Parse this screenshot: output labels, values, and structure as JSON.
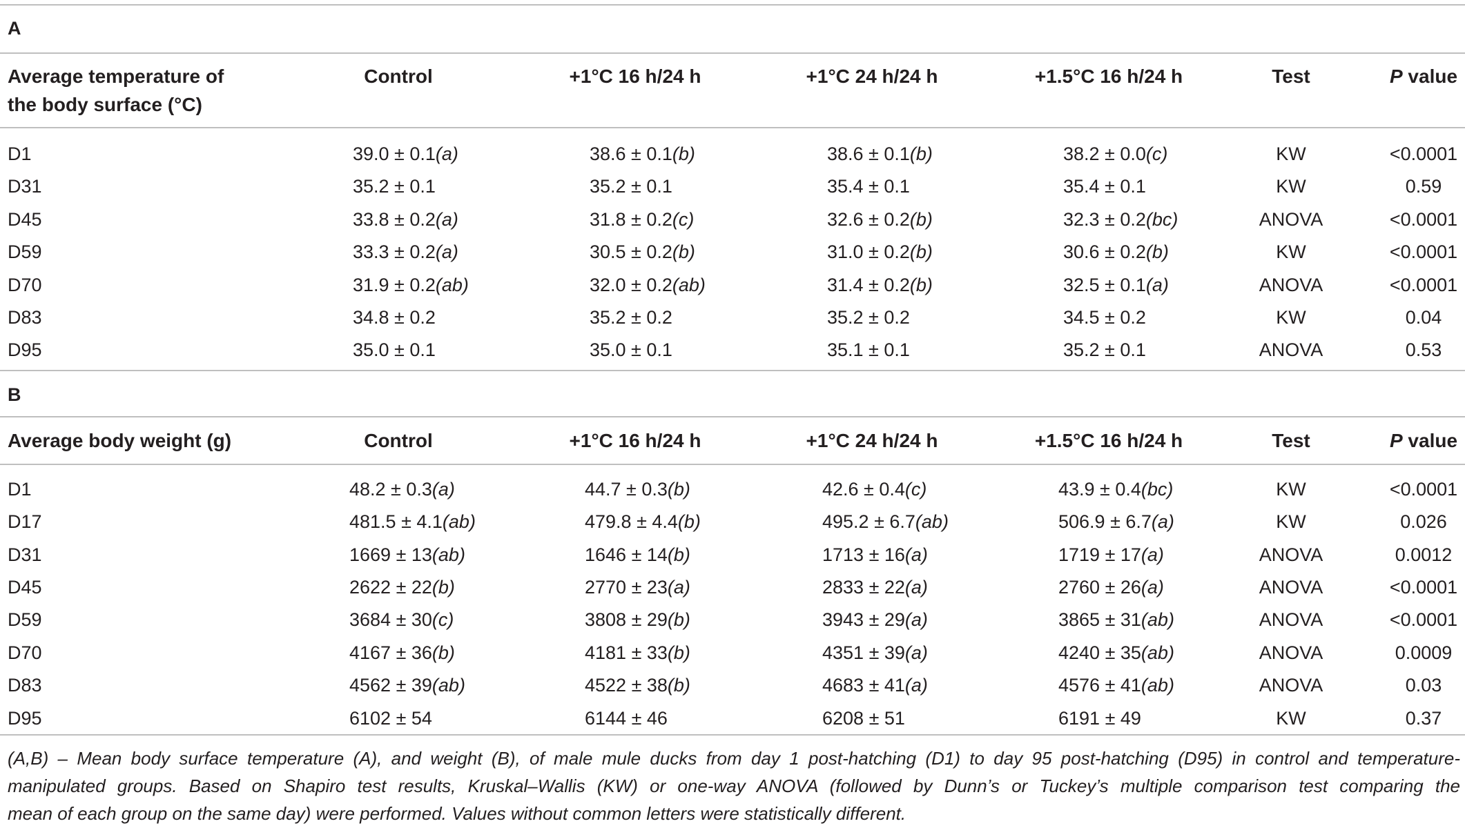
{
  "tables": [
    {
      "panel": "A",
      "header": {
        "label_lines": [
          "Average temperature of",
          "the body surface (°C)"
        ],
        "groups": [
          "Control",
          "+1°C 16 h/24 h",
          "+1°C 24 h/24 h",
          "+1.5°C 16 h/24 h"
        ],
        "test": "Test",
        "p": "P value"
      },
      "rows": [
        {
          "day": "D1",
          "cells": [
            {
              "mean": "39.0 ± 0.1",
              "letters": "(a)"
            },
            {
              "mean": "38.6 ± 0.1",
              "letters": "(b)"
            },
            {
              "mean": "38.6 ± 0.1",
              "letters": "(b)"
            },
            {
              "mean": "38.2 ± 0.0",
              "letters": "(c)"
            }
          ],
          "test": "KW",
          "p": "<0.0001"
        },
        {
          "day": "D31",
          "cells": [
            {
              "mean": "35.2 ± 0.1"
            },
            {
              "mean": "35.2 ± 0.1"
            },
            {
              "mean": "35.4 ± 0.1"
            },
            {
              "mean": "35.4 ± 0.1"
            }
          ],
          "test": "KW",
          "p": "0.59"
        },
        {
          "day": "D45",
          "cells": [
            {
              "mean": "33.8 ± 0.2",
              "letters": "(a)"
            },
            {
              "mean": "31.8 ± 0.2",
              "letters": "(c)"
            },
            {
              "mean": "32.6 ± 0.2",
              "letters": "(b)"
            },
            {
              "mean": "32.3 ± 0.2",
              "letters": "(bc)"
            }
          ],
          "test": "ANOVA",
          "p": "<0.0001"
        },
        {
          "day": "D59",
          "cells": [
            {
              "mean": "33.3 ± 0.2",
              "letters": "(a)"
            },
            {
              "mean": "30.5 ± 0.2",
              "letters": "(b)"
            },
            {
              "mean": "31.0 ± 0.2",
              "letters": "(b)"
            },
            {
              "mean": "30.6 ± 0.2",
              "letters": "(b)"
            }
          ],
          "test": "KW",
          "p": "<0.0001"
        },
        {
          "day": "D70",
          "cells": [
            {
              "mean": "31.9 ± 0.2",
              "letters": "(ab)"
            },
            {
              "mean": "32.0 ± 0.2",
              "letters": "(ab)"
            },
            {
              "mean": "31.4 ± 0.2",
              "letters": "(b)"
            },
            {
              "mean": "32.5 ± 0.1",
              "letters": "(a)"
            }
          ],
          "test": "ANOVA",
          "p": "<0.0001"
        },
        {
          "day": "D83",
          "cells": [
            {
              "mean": "34.8 ± 0.2"
            },
            {
              "mean": "35.2 ± 0.2"
            },
            {
              "mean": "35.2 ± 0.2"
            },
            {
              "mean": "34.5 ± 0.2"
            }
          ],
          "test": "KW",
          "p": "0.04"
        },
        {
          "day": "D95",
          "cells": [
            {
              "mean": "35.0 ± 0.1"
            },
            {
              "mean": "35.0 ± 0.1"
            },
            {
              "mean": "35.1 ± 0.1"
            },
            {
              "mean": "35.2 ± 0.1"
            }
          ],
          "test": "ANOVA",
          "p": "0.53"
        }
      ]
    },
    {
      "panel": "B",
      "header": {
        "label_lines": [
          "Average body weight (g)"
        ],
        "groups": [
          "Control",
          "+1°C 16 h/24 h",
          "+1°C 24 h/24 h",
          "+1.5°C 16 h/24 h"
        ],
        "test": "Test",
        "p": "P value"
      },
      "rows": [
        {
          "day": "D1",
          "cells": [
            {
              "mean": "48.2 ± 0.3",
              "letters": "(a)"
            },
            {
              "mean": "44.7 ± 0.3",
              "letters": "(b)"
            },
            {
              "mean": "42.6 ± 0.4",
              "letters": "(c)"
            },
            {
              "mean": "43.9 ± 0.4",
              "letters": "(bc)"
            }
          ],
          "test": "KW",
          "p": "<0.0001"
        },
        {
          "day": "D17",
          "cells": [
            {
              "mean": "481.5 ± 4.1",
              "letters": "(ab)"
            },
            {
              "mean": "479.8 ± 4.4",
              "letters": "(b)"
            },
            {
              "mean": "495.2 ± 6.7",
              "letters": "(ab)"
            },
            {
              "mean": "506.9 ± 6.7",
              "letters": "(a)"
            }
          ],
          "test": "KW",
          "p": "0.026"
        },
        {
          "day": "D31",
          "cells": [
            {
              "mean": "1669 ± 13",
              "letters": "(ab)"
            },
            {
              "mean": "1646 ± 14",
              "letters": "(b)"
            },
            {
              "mean": "1713 ± 16",
              "letters": "(a)"
            },
            {
              "mean": "1719 ± 17",
              "letters": "(a)"
            }
          ],
          "test": "ANOVA",
          "p": "0.0012"
        },
        {
          "day": "D45",
          "cells": [
            {
              "mean": "2622 ± 22",
              "letters": "(b)"
            },
            {
              "mean": "2770 ± 23",
              "letters": "(a)"
            },
            {
              "mean": "2833 ± 22",
              "letters": "(a)"
            },
            {
              "mean": "2760 ± 26",
              "letters": "(a)"
            }
          ],
          "test": "ANOVA",
          "p": "<0.0001"
        },
        {
          "day": "D59",
          "cells": [
            {
              "mean": "3684 ± 30",
              "letters": "(c)"
            },
            {
              "mean": "3808 ± 29",
              "letters": "(b)"
            },
            {
              "mean": "3943 ± 29",
              "letters": "(a)"
            },
            {
              "mean": "3865 ± 31",
              "letters": "(ab)"
            }
          ],
          "test": "ANOVA",
          "p": "<0.0001"
        },
        {
          "day": "D70",
          "cells": [
            {
              "mean": "4167 ± 36",
              "letters": "(b)"
            },
            {
              "mean": "4181 ± 33",
              "letters": "(b)"
            },
            {
              "mean": "4351 ± 39",
              "letters": "(a)"
            },
            {
              "mean": "4240 ± 35",
              "letters": "(ab)"
            }
          ],
          "test": "ANOVA",
          "p": "0.0009"
        },
        {
          "day": "D83",
          "cells": [
            {
              "mean": "4562 ± 39",
              "letters": "(ab)"
            },
            {
              "mean": "4522 ± 38",
              "letters": "(b)"
            },
            {
              "mean": "4683 ± 41",
              "letters": "(a)"
            },
            {
              "mean": "4576 ± 41",
              "letters": "(ab)"
            }
          ],
          "test": "ANOVA",
          "p": "0.03"
        },
        {
          "day": "D95",
          "cells": [
            {
              "mean": "6102 ± 54"
            },
            {
              "mean": "6144 ± 46"
            },
            {
              "mean": "6208 ± 51"
            },
            {
              "mean": "6191 ± 49"
            }
          ],
          "test": "KW",
          "p": "0.37"
        }
      ]
    }
  ],
  "caption": {
    "lines": [
      "(A,B) – Mean body surface temperature (A), and weight (B), of male mule ducks from day 1 post-hatching (D1) to day 95 post-hatching (D95) in control and temperature-",
      "manipulated groups. Based on Shapiro test results, Kruskal–Wallis (KW) or one-way ANOVA (followed by Dunn’s or Tuckey’s multiple comparison test comparing the",
      "mean of each group on the same day) were performed. Values without common letters were statistically different."
    ]
  }
}
